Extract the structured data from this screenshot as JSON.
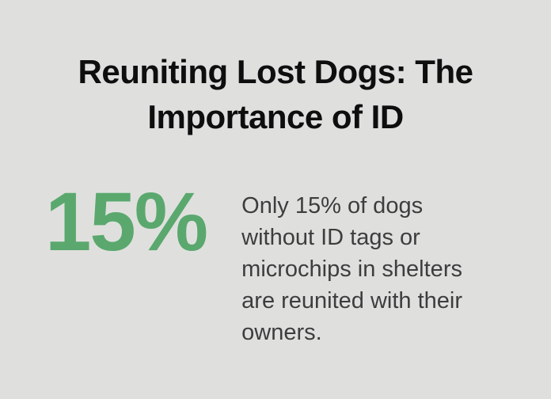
{
  "card": {
    "title": {
      "text": "Reuniting Lost Dogs: The Importance of ID",
      "lines": [
        "Reuniting Lost Dogs: The",
        "Importance of ID"
      ]
    },
    "stat": {
      "value": "15%",
      "description": "Only 15% of dogs without ID tags or microchips in shelters are reunited with their owners.",
      "description_lines": [
        "Only 15% of dogs",
        "without ID tags or",
        "microchips in shelters",
        "are reunited with their",
        "owners."
      ]
    },
    "colors": {
      "background": "#dfe0de",
      "title_text": "#0e0e0e",
      "accent_green": "#5aa86e",
      "body_text": "#3d3d3d"
    }
  }
}
